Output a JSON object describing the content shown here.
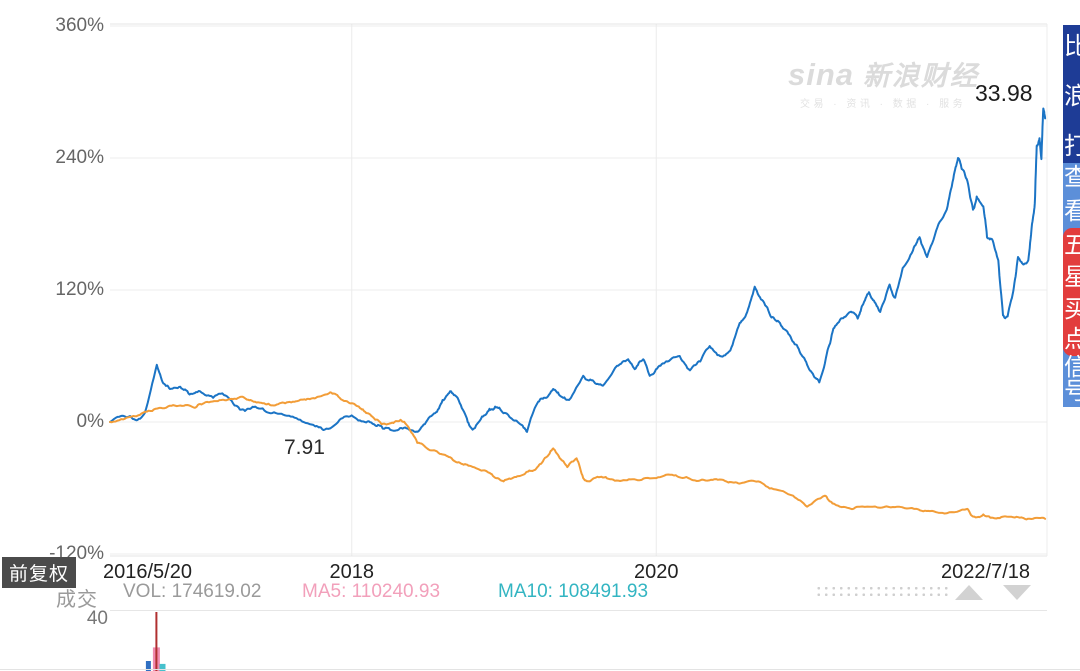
{
  "watermark": {
    "brand": "sina",
    "name": "新浪财经",
    "tagline": "交易 · 资讯 · 数据 · 服务"
  },
  "annotations": {
    "end_value": "33.98",
    "low_value": "7.91"
  },
  "adjust_badge_label": "前复权",
  "volume_panel": {
    "label": "成交",
    "scale_tick": "40",
    "vol_text": "VOL: 174619.02",
    "ma5_text": "MA5: 110240.93",
    "ma10_text": "MA10: 108491.93",
    "vol_color": "#9a9a9a",
    "ma5_color": "#f2a0bb",
    "ma10_color": "#33b5c2"
  },
  "pager": {
    "up_icon": "triangle-up",
    "down_icon": "triangle-down"
  },
  "side_banner": {
    "top_bg": "#1e3c96",
    "bottom_bg": "#5c8fd9",
    "highlight_bg": "#e23d3d",
    "top_chars": [
      "比",
      "浪",
      "打"
    ],
    "bottom_chars": [
      "查",
      "看",
      "五",
      "星",
      "买",
      "点",
      "信",
      "号"
    ],
    "highlight_chars": [
      "五",
      "星",
      "买",
      "点"
    ]
  },
  "chart_data": {
    "type": "line",
    "title": "",
    "grid": true,
    "x_axis": {
      "range_start": "2016/5/20",
      "range_end": "2022/7/18",
      "ticks": [
        {
          "label": "2016/5/20",
          "f": 0.0,
          "align": "left",
          "grid": false
        },
        {
          "label": "2018",
          "f": 0.258,
          "align": "center",
          "grid": true
        },
        {
          "label": "2020",
          "f": 0.583,
          "align": "center",
          "grid": true
        },
        {
          "label": "2022/7/18",
          "f": 1.0,
          "align": "right",
          "grid": false
        }
      ]
    },
    "y_axis": {
      "unit": "%",
      "ticks": [
        360,
        240,
        120,
        0,
        -120
      ],
      "range": [
        -120,
        360
      ]
    },
    "series": [
      {
        "name": "stock-price-pct",
        "color": "#1b74c5",
        "width": 2,
        "jitter": 2.2,
        "seed": 7,
        "end_label": "33.98",
        "low_label": "7.91",
        "points": [
          [
            0,
            0
          ],
          [
            0.016,
            5
          ],
          [
            0.027,
            2
          ],
          [
            0.037,
            8
          ],
          [
            0.05,
            52
          ],
          [
            0.057,
            35
          ],
          [
            0.064,
            30
          ],
          [
            0.075,
            32
          ],
          [
            0.085,
            25
          ],
          [
            0.096,
            28
          ],
          [
            0.11,
            22
          ],
          [
            0.12,
            26
          ],
          [
            0.133,
            15
          ],
          [
            0.144,
            10
          ],
          [
            0.155,
            14
          ],
          [
            0.171,
            8
          ],
          [
            0.187,
            6
          ],
          [
            0.203,
            2
          ],
          [
            0.219,
            -4
          ],
          [
            0.229,
            -7
          ],
          [
            0.245,
            2
          ],
          [
            0.258,
            6
          ],
          [
            0.272,
            0
          ],
          [
            0.283,
            -3
          ],
          [
            0.291,
            -6
          ],
          [
            0.304,
            -8
          ],
          [
            0.315,
            -5
          ],
          [
            0.326,
            -9
          ],
          [
            0.336,
            -2
          ],
          [
            0.347,
            8
          ],
          [
            0.355,
            20
          ],
          [
            0.363,
            28
          ],
          [
            0.371,
            22
          ],
          [
            0.38,
            5
          ],
          [
            0.387,
            -7
          ],
          [
            0.397,
            5
          ],
          [
            0.405,
            12
          ],
          [
            0.411,
            14
          ],
          [
            0.42,
            8
          ],
          [
            0.43,
            2
          ],
          [
            0.44,
            -3
          ],
          [
            0.445,
            -9
          ],
          [
            0.456,
            17
          ],
          [
            0.464,
            22
          ],
          [
            0.473,
            30
          ],
          [
            0.48,
            24
          ],
          [
            0.49,
            20
          ],
          [
            0.505,
            42
          ],
          [
            0.515,
            38
          ],
          [
            0.526,
            33
          ],
          [
            0.541,
            51
          ],
          [
            0.553,
            57
          ],
          [
            0.56,
            48
          ],
          [
            0.569,
            57
          ],
          [
            0.576,
            42
          ],
          [
            0.585,
            50
          ],
          [
            0.595,
            55
          ],
          [
            0.608,
            60
          ],
          [
            0.619,
            47
          ],
          [
            0.63,
            55
          ],
          [
            0.64,
            69
          ],
          [
            0.651,
            60
          ],
          [
            0.662,
            65
          ],
          [
            0.672,
            90
          ],
          [
            0.68,
            100
          ],
          [
            0.688,
            123
          ],
          [
            0.697,
            110
          ],
          [
            0.706,
            95
          ],
          [
            0.715,
            90
          ],
          [
            0.724,
            80
          ],
          [
            0.733,
            70
          ],
          [
            0.741,
            58
          ],
          [
            0.749,
            45
          ],
          [
            0.757,
            36
          ],
          [
            0.765,
            62
          ],
          [
            0.772,
            85
          ],
          [
            0.78,
            94
          ],
          [
            0.79,
            100
          ],
          [
            0.798,
            94
          ],
          [
            0.803,
            106
          ],
          [
            0.81,
            118
          ],
          [
            0.817,
            108
          ],
          [
            0.822,
            100
          ],
          [
            0.832,
            125
          ],
          [
            0.838,
            113
          ],
          [
            0.846,
            140
          ],
          [
            0.857,
            156
          ],
          [
            0.864,
            168
          ],
          [
            0.872,
            150
          ],
          [
            0.883,
            177
          ],
          [
            0.893,
            193
          ],
          [
            0.9,
            221
          ],
          [
            0.905,
            240
          ],
          [
            0.909,
            230
          ],
          [
            0.915,
            219
          ],
          [
            0.921,
            193
          ],
          [
            0.925,
            205
          ],
          [
            0.932,
            196
          ],
          [
            0.936,
            168
          ],
          [
            0.942,
            165
          ],
          [
            0.948,
            147
          ],
          [
            0.953,
            97
          ],
          [
            0.958,
            96
          ],
          [
            0.964,
            119
          ],
          [
            0.969,
            150
          ],
          [
            0.974,
            144
          ],
          [
            0.98,
            147
          ],
          [
            0.984,
            180
          ],
          [
            0.987,
            199
          ],
          [
            0.989,
            251
          ],
          [
            0.992,
            258
          ],
          [
            0.994,
            239
          ],
          [
            0.996,
            285
          ],
          [
            0.998,
            276
          ]
        ]
      },
      {
        "name": "benchmark-pct",
        "color": "#f29d38",
        "width": 2,
        "jitter": 1.5,
        "seed": 13,
        "points": [
          [
            0,
            0
          ],
          [
            0.016,
            3
          ],
          [
            0.03,
            6
          ],
          [
            0.045,
            10
          ],
          [
            0.06,
            13
          ],
          [
            0.075,
            15
          ],
          [
            0.09,
            13
          ],
          [
            0.1,
            17
          ],
          [
            0.115,
            19
          ],
          [
            0.13,
            21
          ],
          [
            0.14,
            23
          ],
          [
            0.15,
            20
          ],
          [
            0.163,
            17
          ],
          [
            0.175,
            15
          ],
          [
            0.187,
            17
          ],
          [
            0.2,
            19
          ],
          [
            0.212,
            21
          ],
          [
            0.222,
            23
          ],
          [
            0.235,
            27
          ],
          [
            0.245,
            22
          ],
          [
            0.258,
            17
          ],
          [
            0.268,
            12
          ],
          [
            0.275,
            8
          ],
          [
            0.283,
            2
          ],
          [
            0.29,
            -2
          ],
          [
            0.3,
            -1
          ],
          [
            0.31,
            2
          ],
          [
            0.318,
            -4
          ],
          [
            0.328,
            -19
          ],
          [
            0.34,
            -25
          ],
          [
            0.352,
            -29
          ],
          [
            0.363,
            -32
          ],
          [
            0.375,
            -38
          ],
          [
            0.385,
            -40
          ],
          [
            0.4,
            -44
          ],
          [
            0.41,
            -50
          ],
          [
            0.42,
            -54
          ],
          [
            0.432,
            -50
          ],
          [
            0.443,
            -47
          ],
          [
            0.452,
            -44
          ],
          [
            0.46,
            -38
          ],
          [
            0.468,
            -30
          ],
          [
            0.473,
            -24
          ],
          [
            0.48,
            -33
          ],
          [
            0.488,
            -41
          ],
          [
            0.498,
            -33
          ],
          [
            0.505,
            -51
          ],
          [
            0.512,
            -54
          ],
          [
            0.523,
            -50
          ],
          [
            0.535,
            -52
          ],
          [
            0.55,
            -53
          ],
          [
            0.565,
            -53
          ],
          [
            0.583,
            -51
          ],
          [
            0.6,
            -48
          ],
          [
            0.615,
            -50
          ],
          [
            0.63,
            -53
          ],
          [
            0.645,
            -52
          ],
          [
            0.66,
            -55
          ],
          [
            0.672,
            -56
          ],
          [
            0.692,
            -54
          ],
          [
            0.708,
            -61
          ],
          [
            0.729,
            -67
          ],
          [
            0.744,
            -77
          ],
          [
            0.763,
            -67
          ],
          [
            0.771,
            -74
          ],
          [
            0.787,
            -78
          ],
          [
            0.8,
            -77
          ],
          [
            0.822,
            -78
          ],
          [
            0.84,
            -77
          ],
          [
            0.861,
            -79
          ],
          [
            0.875,
            -81
          ],
          [
            0.893,
            -83
          ],
          [
            0.915,
            -79
          ],
          [
            0.921,
            -86
          ],
          [
            0.932,
            -84
          ],
          [
            0.942,
            -87
          ],
          [
            0.957,
            -86
          ],
          [
            0.971,
            -87
          ],
          [
            0.985,
            -88
          ],
          [
            0.998,
            -88
          ]
        ]
      }
    ],
    "volume": {
      "pane_top": 612,
      "bars": [
        {
          "f": 0.0495,
          "w": 7,
          "h": 0.4,
          "color": "#f08bb0"
        },
        {
          "f": 0.041,
          "w": 5,
          "h": 0.17,
          "color": "#2f6fc2"
        },
        {
          "f": 0.056,
          "w": 6,
          "h": 0.12,
          "color": "#46c0cc"
        },
        {
          "f": 0.0495,
          "w": 2,
          "h": 1.0,
          "color": "#b03030"
        }
      ]
    }
  }
}
